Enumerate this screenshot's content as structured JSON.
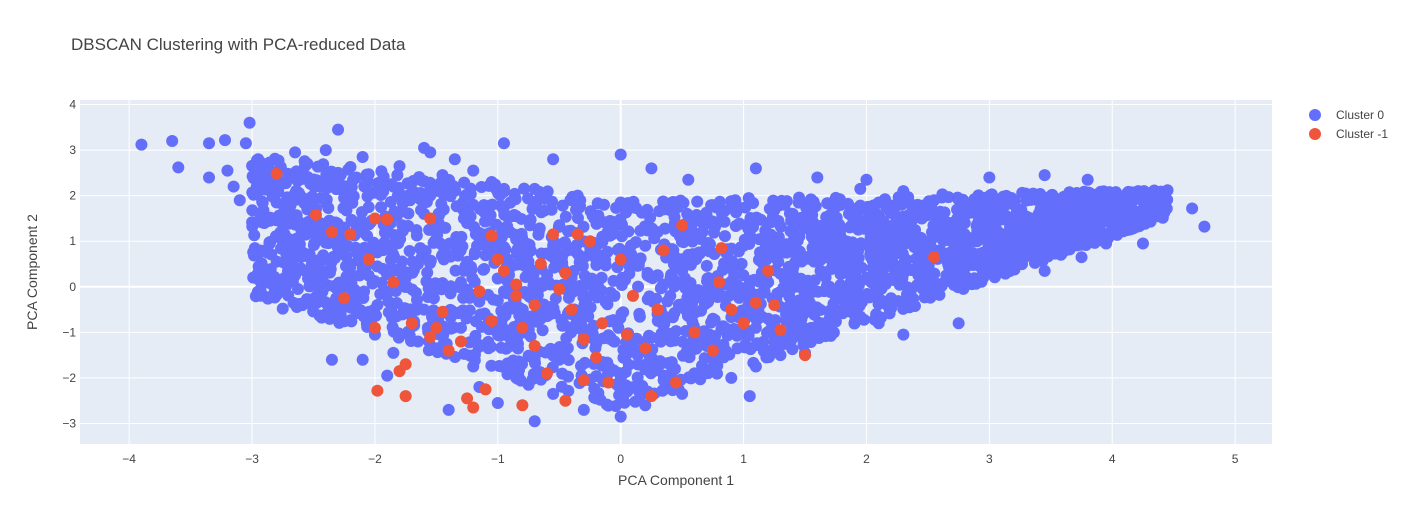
{
  "chart_data": {
    "type": "scatter",
    "title": "DBSCAN Clustering with PCA-reduced Data",
    "xlabel": "PCA Component 1",
    "ylabel": "PCA Component 2",
    "xlim": [
      -4.4,
      5.3
    ],
    "ylim": [
      -3.45,
      4.1
    ],
    "xticks": [
      -4,
      -3,
      -2,
      -1,
      0,
      1,
      2,
      3,
      4,
      5
    ],
    "yticks": [
      -3,
      -2,
      -1,
      0,
      1,
      2,
      3,
      4
    ],
    "grid": true,
    "legend_position": "top-right",
    "plot_bg": "#E5ECF6",
    "series": [
      {
        "name": "Cluster 0",
        "color": "#636EFA",
        "points": [
          [
            -3.9,
            3.12
          ],
          [
            -3.65,
            3.2
          ],
          [
            -3.6,
            2.62
          ],
          [
            -3.35,
            3.15
          ],
          [
            -3.35,
            2.4
          ],
          [
            -3.22,
            3.22
          ],
          [
            -3.2,
            2.55
          ],
          [
            -3.15,
            2.2
          ],
          [
            -3.1,
            1.9
          ],
          [
            -3.02,
            3.6
          ],
          [
            -3.05,
            3.15
          ],
          [
            -2.95,
            2.8
          ],
          [
            -2.8,
            1.85
          ],
          [
            -2.9,
            1.4
          ],
          [
            -2.7,
            1.05
          ],
          [
            -2.72,
            0.7
          ],
          [
            -2.65,
            0.25
          ],
          [
            -2.75,
            -0.48
          ],
          [
            -2.45,
            -0.25
          ],
          [
            -2.4,
            -0.6
          ],
          [
            -2.35,
            -1.6
          ],
          [
            -2.2,
            -0.35
          ],
          [
            -2.1,
            -1.6
          ],
          [
            -2.0,
            -1.05
          ],
          [
            -1.9,
            -1.95
          ],
          [
            -1.6,
            3.05
          ],
          [
            -1.35,
            2.8
          ],
          [
            -1.55,
            2.95
          ],
          [
            -2.3,
            3.45
          ],
          [
            -2.55,
            2.7
          ],
          [
            -2.3,
            2.5
          ],
          [
            -1.2,
            2.55
          ],
          [
            -0.95,
            3.15
          ],
          [
            -0.55,
            2.8
          ],
          [
            0.0,
            2.9
          ],
          [
            0.25,
            2.6
          ],
          [
            0.55,
            2.35
          ],
          [
            1.1,
            2.6
          ],
          [
            1.6,
            2.4
          ],
          [
            1.95,
            2.15
          ],
          [
            2.0,
            2.35
          ],
          [
            2.3,
            2.1
          ],
          [
            2.55,
            1.9
          ],
          [
            3.0,
            2.4
          ],
          [
            3.45,
            2.45
          ],
          [
            3.8,
            2.35
          ],
          [
            3.9,
            1.7
          ],
          [
            4.05,
            1.75
          ],
          [
            4.3,
            1.6
          ],
          [
            4.4,
            1.55
          ],
          [
            4.65,
            1.72
          ],
          [
            4.75,
            1.32
          ],
          [
            4.25,
            0.95
          ],
          [
            3.95,
            0.95
          ],
          [
            3.75,
            0.65
          ],
          [
            3.45,
            0.35
          ],
          [
            3.2,
            0.7
          ],
          [
            2.95,
            0.2
          ],
          [
            2.75,
            0.45
          ],
          [
            2.5,
            0.0
          ],
          [
            2.2,
            -0.25
          ],
          [
            1.9,
            -0.6
          ],
          [
            2.1,
            -0.8
          ],
          [
            2.3,
            -1.05
          ],
          [
            2.75,
            -0.8
          ],
          [
            1.5,
            -1.15
          ],
          [
            1.5,
            -1.45
          ],
          [
            1.1,
            -1.75
          ],
          [
            1.05,
            -2.4
          ],
          [
            0.5,
            -2.35
          ],
          [
            0.2,
            -2.6
          ],
          [
            0.0,
            -2.85
          ],
          [
            -0.3,
            -2.7
          ],
          [
            -0.7,
            -2.95
          ],
          [
            -1.0,
            -2.55
          ],
          [
            -1.4,
            -2.7
          ],
          [
            -1.15,
            -2.2
          ],
          [
            -0.75,
            -2.15
          ],
          [
            -0.25,
            -2.05
          ],
          [
            0.35,
            -1.95
          ],
          [
            0.75,
            -1.6
          ],
          [
            1.25,
            -1.2
          ],
          [
            1.7,
            -0.7
          ],
          [
            1.45,
            -0.3
          ],
          [
            1.2,
            0.1
          ],
          [
            0.9,
            0.4
          ],
          [
            0.55,
            0.7
          ],
          [
            0.2,
            0.9
          ],
          [
            -0.15,
            1.1
          ],
          [
            -0.5,
            1.35
          ],
          [
            -0.85,
            1.55
          ],
          [
            -1.2,
            1.8
          ],
          [
            -1.55,
            2.0
          ],
          [
            -1.85,
            2.2
          ],
          [
            -2.15,
            2.4
          ],
          [
            -2.45,
            2.2
          ],
          [
            -2.55,
            1.7
          ],
          [
            -2.25,
            1.3
          ],
          [
            -1.95,
            0.9
          ],
          [
            -1.65,
            0.5
          ],
          [
            -1.3,
            0.1
          ],
          [
            -1.0,
            -0.3
          ],
          [
            -0.65,
            -0.7
          ],
          [
            -0.3,
            -1.1
          ],
          [
            0.05,
            -1.4
          ],
          [
            0.4,
            -1.1
          ],
          [
            0.75,
            -0.7
          ],
          [
            1.05,
            -0.3
          ],
          [
            1.4,
            0.3
          ],
          [
            1.75,
            0.8
          ],
          [
            2.1,
            1.2
          ],
          [
            2.45,
            1.5
          ],
          [
            2.8,
            1.75
          ],
          [
            3.15,
            1.95
          ],
          [
            3.5,
            1.8
          ],
          [
            3.85,
            1.4
          ],
          [
            3.6,
            1.1
          ],
          [
            3.25,
            1.3
          ],
          [
            2.9,
            1.0
          ],
          [
            2.6,
            0.8
          ],
          [
            2.3,
            0.5
          ],
          [
            2.0,
            0.2
          ],
          [
            1.7,
            0.0
          ],
          [
            1.4,
            -0.5
          ],
          [
            1.1,
            -0.9
          ],
          [
            0.7,
            -1.3
          ],
          [
            0.3,
            -1.7
          ],
          [
            -0.1,
            -1.8
          ],
          [
            -0.5,
            -1.6
          ],
          [
            -0.9,
            -1.3
          ],
          [
            -1.3,
            -0.9
          ],
          [
            -1.6,
            -0.5
          ],
          [
            -1.9,
            -0.1
          ],
          [
            -2.1,
            0.4
          ],
          [
            -2.3,
            0.9
          ],
          [
            -2.5,
            1.2
          ],
          [
            -2.8,
            2.1
          ],
          [
            -2.95,
            2.45
          ],
          [
            -2.65,
            2.95
          ],
          [
            -2.4,
            3.0
          ],
          [
            -2.1,
            2.85
          ],
          [
            -1.8,
            2.65
          ],
          [
            -1.45,
            2.45
          ],
          [
            -1.05,
            2.3
          ],
          [
            -0.7,
            2.15
          ],
          [
            -0.35,
            2.0
          ],
          [
            0.0,
            1.85
          ],
          [
            0.35,
            1.7
          ],
          [
            0.7,
            1.55
          ],
          [
            1.05,
            1.4
          ],
          [
            1.4,
            1.6
          ],
          [
            1.75,
            1.75
          ],
          [
            2.1,
            1.85
          ],
          [
            2.45,
            1.65
          ],
          [
            2.8,
            1.4
          ],
          [
            3.15,
            1.5
          ],
          [
            3.5,
            1.2
          ],
          [
            3.9,
            1.25
          ],
          [
            4.15,
            1.35
          ],
          [
            3.7,
            0.95
          ],
          [
            3.35,
            0.9
          ],
          [
            3.0,
            0.55
          ],
          [
            2.65,
            0.25
          ],
          [
            2.35,
            -0.45
          ],
          [
            1.85,
            -0.35
          ],
          [
            1.55,
            -0.9
          ],
          [
            1.3,
            -1.5
          ],
          [
            0.9,
            -2.0
          ],
          [
            0.6,
            -1.9
          ],
          [
            0.15,
            -2.3
          ],
          [
            -0.2,
            -2.45
          ],
          [
            -0.55,
            -2.35
          ],
          [
            -0.85,
            -2.0
          ],
          [
            -1.2,
            -1.75
          ],
          [
            -1.55,
            -1.35
          ],
          [
            -1.85,
            -1.45
          ],
          [
            -2.05,
            -0.55
          ],
          [
            -1.75,
            0.2
          ],
          [
            -1.45,
            0.7
          ],
          [
            -1.1,
            1.0
          ],
          [
            -0.75,
            0.55
          ],
          [
            -0.4,
            0.2
          ],
          [
            -0.05,
            -0.2
          ],
          [
            0.3,
            -0.6
          ],
          [
            0.65,
            -1.0
          ],
          [
            0.95,
            -1.35
          ],
          [
            1.2,
            -0.7
          ],
          [
            0.85,
            0.05
          ],
          [
            0.5,
            0.35
          ],
          [
            0.15,
            0.55
          ],
          [
            -0.2,
            0.7
          ],
          [
            -0.55,
            0.9
          ],
          [
            -0.9,
            1.2
          ],
          [
            -1.25,
            1.4
          ],
          [
            -1.6,
            1.6
          ],
          [
            -1.95,
            1.75
          ],
          [
            -2.2,
            1.95
          ],
          [
            -0.05,
            1.3
          ],
          [
            0.3,
            1.2
          ],
          [
            0.65,
            1.05
          ],
          [
            1.0,
            0.9
          ],
          [
            1.35,
            0.75
          ],
          [
            1.65,
            1.1
          ],
          [
            1.95,
            1.45
          ],
          [
            2.25,
            0.95
          ]
        ]
      },
      {
        "name": "Cluster -1",
        "color": "#EF553B",
        "points": [
          [
            -2.8,
            2.48
          ],
          [
            -2.48,
            1.58
          ],
          [
            -2.35,
            1.2
          ],
          [
            -2.2,
            1.15
          ],
          [
            -2.0,
            1.5
          ],
          [
            -1.9,
            1.48
          ],
          [
            -1.55,
            1.5
          ],
          [
            -2.05,
            0.6
          ],
          [
            -1.85,
            0.1
          ],
          [
            -2.25,
            -0.25
          ],
          [
            -2.0,
            -0.9
          ],
          [
            -1.8,
            -1.85
          ],
          [
            -1.75,
            -1.7
          ],
          [
            -1.98,
            -2.28
          ],
          [
            -1.75,
            -2.4
          ],
          [
            -1.7,
            -0.8
          ],
          [
            -1.5,
            -0.9
          ],
          [
            -1.45,
            -0.55
          ],
          [
            -1.3,
            -1.2
          ],
          [
            -1.25,
            -2.45
          ],
          [
            -1.2,
            -2.65
          ],
          [
            -1.1,
            -2.25
          ],
          [
            -1.05,
            1.12
          ],
          [
            -1.0,
            0.6
          ],
          [
            -0.95,
            0.35
          ],
          [
            -0.85,
            -0.2
          ],
          [
            -0.8,
            -0.9
          ],
          [
            -0.7,
            -1.3
          ],
          [
            -0.65,
            0.5
          ],
          [
            -0.55,
            1.15
          ],
          [
            -0.45,
            0.3
          ],
          [
            -0.35,
            1.15
          ],
          [
            -0.25,
            1.0
          ],
          [
            -0.4,
            -0.5
          ],
          [
            -0.3,
            -1.15
          ],
          [
            -0.2,
            -1.55
          ],
          [
            -0.1,
            -2.1
          ],
          [
            0.0,
            0.6
          ],
          [
            0.1,
            -0.2
          ],
          [
            0.2,
            -1.35
          ],
          [
            0.3,
            -0.5
          ],
          [
            0.35,
            0.8
          ],
          [
            0.5,
            1.35
          ],
          [
            0.6,
            -1.0
          ],
          [
            0.75,
            -1.4
          ],
          [
            0.8,
            0.1
          ],
          [
            0.82,
            0.85
          ],
          [
            0.9,
            -0.5
          ],
          [
            1.0,
            -0.8
          ],
          [
            1.1,
            -0.35
          ],
          [
            1.2,
            0.35
          ],
          [
            1.25,
            -0.4
          ],
          [
            1.3,
            -0.95
          ],
          [
            1.5,
            -1.5
          ],
          [
            -0.6,
            -1.9
          ],
          [
            -0.45,
            -2.5
          ],
          [
            -0.8,
            -2.6
          ],
          [
            -1.4,
            -1.4
          ],
          [
            -1.55,
            -1.1
          ],
          [
            -1.15,
            -0.1
          ],
          [
            -1.05,
            -0.75
          ],
          [
            -0.15,
            -0.8
          ],
          [
            0.45,
            -2.1
          ],
          [
            0.25,
            -2.4
          ],
          [
            -0.3,
            -2.05
          ],
          [
            2.55,
            0.65
          ],
          [
            -0.85,
            0.05
          ],
          [
            -0.7,
            -0.4
          ],
          [
            -0.5,
            -0.05
          ],
          [
            0.05,
            -1.05
          ]
        ]
      }
    ]
  }
}
